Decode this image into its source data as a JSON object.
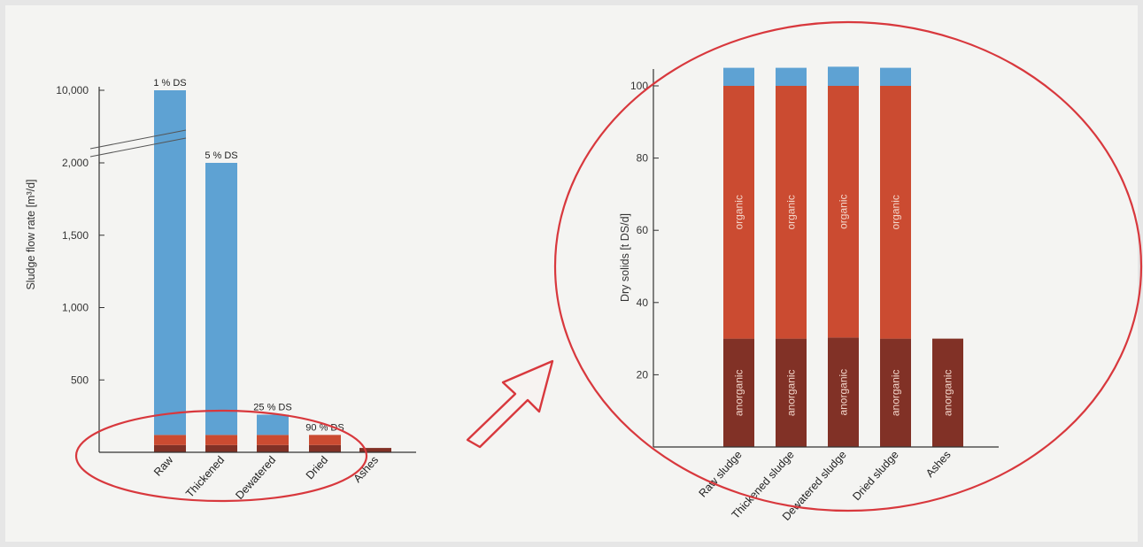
{
  "colors": {
    "water": "#5ea2d3",
    "organic": "#cb4b31",
    "anorganic": "#813126",
    "highlight": "#d8383d",
    "axis": "#333333"
  },
  "chart_data": [
    {
      "type": "bar",
      "stacked": true,
      "categories": [
        "Raw",
        "Thickened",
        "Dewatered",
        "Dried",
        "Ashes"
      ],
      "ylabel": "Sludge flow rate [m³/d]",
      "y_ticks": [
        "500",
        "1,000",
        "1,500",
        "2,000",
        "10,000"
      ],
      "axis_break": "between 2,000 and 10,000",
      "series": [
        {
          "values": [
            50,
            50,
            50,
            50,
            30
          ]
        },
        {
          "values": [
            70,
            70,
            70,
            70,
            0
          ]
        },
        {
          "values": [
            9880,
            1880,
            140,
            0,
            0
          ]
        }
      ],
      "totals": [
        10000,
        2000,
        260,
        120,
        30
      ],
      "data_labels": [
        "1 % DS",
        "5 % DS",
        "25 % DS",
        "90 % DS",
        ""
      ]
    },
    {
      "type": "bar",
      "stacked": true,
      "categories": [
        "Raw sludge",
        "Thickened sludge",
        "Dewatered sludge",
        "Dried sludge",
        "Ashes"
      ],
      "ylabel": "Dry solids [t DS/d]",
      "y_ticks": [
        "20",
        "40",
        "60",
        "80",
        "100"
      ],
      "ylim": [
        0,
        105
      ],
      "series": [
        {
          "name": "anorganic",
          "values": [
            30,
            30,
            30.3,
            30,
            30
          ]
        },
        {
          "name": "organic",
          "values": [
            70,
            70,
            69.7,
            70,
            0
          ]
        },
        {
          "values": [
            5,
            5,
            5.3,
            5,
            0
          ]
        }
      ],
      "segment_labels": {
        "anorganic": "anorganic",
        "organic": "organic"
      }
    }
  ]
}
